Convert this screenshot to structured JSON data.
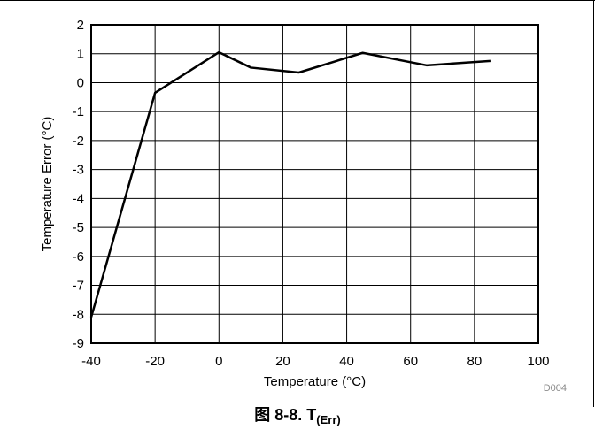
{
  "chart_data": {
    "type": "line",
    "title": "",
    "xlabel": "Temperature (°C)",
    "ylabel": "Temperature Error (°C)",
    "xlim": [
      -40,
      100
    ],
    "ylim": [
      -9,
      2
    ],
    "xticks": [
      -40,
      -20,
      0,
      20,
      40,
      60,
      80,
      100
    ],
    "yticks": [
      2,
      1,
      0,
      -1,
      -2,
      -3,
      -4,
      -5,
      -6,
      -7,
      -8,
      -9
    ],
    "grid": true,
    "series": [
      {
        "x": [
          -40,
          -20,
          0,
          10,
          25,
          45,
          65,
          85
        ],
        "y": [
          -8.1,
          -0.35,
          1.05,
          0.52,
          0.35,
          1.03,
          0.6,
          0.75
        ]
      }
    ],
    "code": "D004"
  },
  "caption": {
    "prefix": "图 8-8. T",
    "subscript": "(Err)"
  }
}
